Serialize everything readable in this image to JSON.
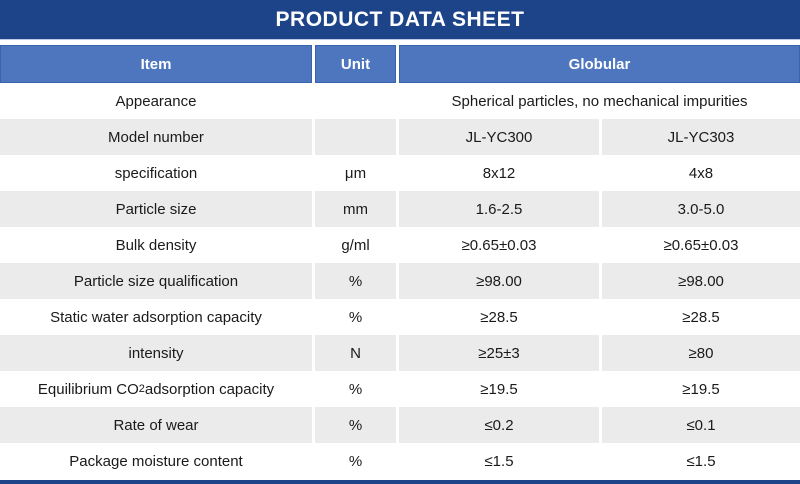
{
  "page": {
    "title": "PRODUCT DATA SHEET"
  },
  "colors": {
    "title_bar_navy": "#1d4389",
    "header_blue": "#4e76be",
    "header_border_blue": "#3a63ac",
    "alt_row_gray": "#ebebeb",
    "body_text": "#1a1a1a"
  },
  "table": {
    "headers": {
      "item": "Item",
      "unit": "Unit",
      "globular": "Globular"
    },
    "rows": [
      {
        "item": "Appearance",
        "unit": "",
        "value_span": "Spherical particles, no mechanical impurities"
      },
      {
        "item": "Model number",
        "unit": "",
        "v1": "JL-YC300",
        "v2": "JL-YC303"
      },
      {
        "item": "specification",
        "unit": "μm",
        "v1": "8x12",
        "v2": "4x8"
      },
      {
        "item": "Particle size",
        "unit": "mm",
        "v1": "1.6-2.5",
        "v2": "3.0-5.0"
      },
      {
        "item": "Bulk density",
        "unit": "g/ml",
        "v1": "≥0.65±0.03",
        "v2": "≥0.65±0.03"
      },
      {
        "item": "Particle size qualification",
        "unit": "%",
        "v1": "≥98.00",
        "v2": "≥98.00"
      },
      {
        "item": "Static water adsorption capacity",
        "unit": "%",
        "v1": "≥28.5",
        "v2": "≥28.5"
      },
      {
        "item": "intensity",
        "unit": "N",
        "v1": "≥25±3",
        "v2": "≥80"
      },
      {
        "item_prefix": "Equilibrium CO",
        "item_sub": "2",
        "item_suffix": " adsorption capacity",
        "unit": "%",
        "v1": "≥19.5",
        "v2": "≥19.5"
      },
      {
        "item": "Rate of wear",
        "unit": "%",
        "v1": "≤0.2",
        "v2": "≤0.1"
      },
      {
        "item": "Package moisture content",
        "unit": "%",
        "v1": "≤1.5",
        "v2": "≤1.5"
      }
    ]
  }
}
